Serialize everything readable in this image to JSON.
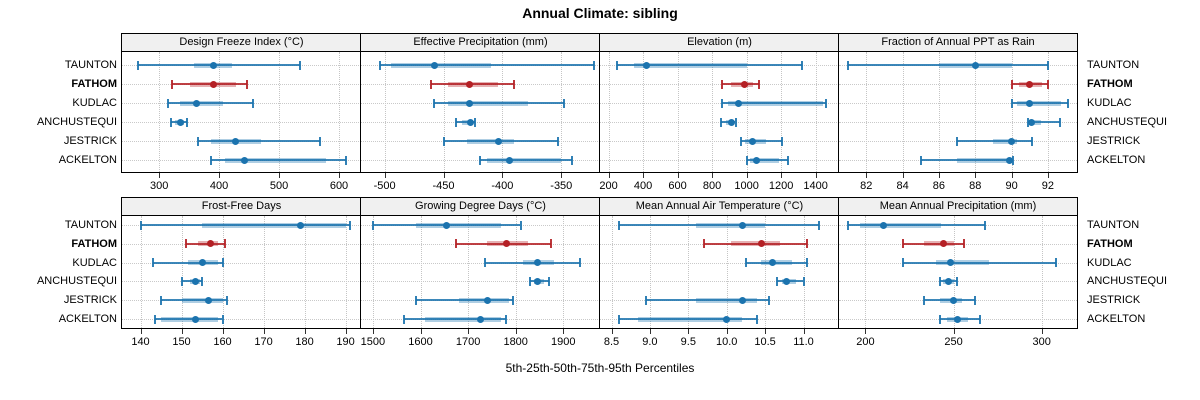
{
  "title": "Annual Climate: sibling",
  "caption": "5th-25th-50th-75th-95th Percentiles",
  "colors": {
    "series": "#1b73ae",
    "highlight": "#b42025",
    "grid": "#c5c5c5",
    "header_bg": "#f0f0f0",
    "border": "#000000"
  },
  "sites": [
    {
      "label": "TAUNTON",
      "bold": false
    },
    {
      "label": "FATHOM",
      "bold": true
    },
    {
      "label": "KUDLAC",
      "bold": false
    },
    {
      "label": "ANCHUSTEQUI",
      "bold": false
    },
    {
      "label": "JESTRICK",
      "bold": false
    },
    {
      "label": "ACKELTON",
      "bold": false
    }
  ],
  "highlight_site": "FATHOM",
  "chart_data": {
    "type": "interval-dotplot",
    "percentile_levels": [
      5,
      25,
      50,
      75,
      95
    ],
    "legend_position": "none",
    "grid": "dotted",
    "panels": [
      {
        "title": "Design Freeze Index (°C)",
        "range": [
          238,
          635
        ],
        "ticks": [
          300,
          400,
          500,
          600
        ],
        "tick_labels": [
          "300",
          "400",
          "500",
          "600"
        ],
        "series": [
          {
            "site": "TAUNTON",
            "values": [
              265,
              358,
              390,
              421,
              535
            ]
          },
          {
            "site": "FATHOM",
            "values": [
              321,
              351,
              390,
              428,
              446
            ]
          },
          {
            "site": "KUDLAC",
            "values": [
              315,
              335,
              362,
              406,
              456
            ]
          },
          {
            "site": "ANCHUSTEQUI",
            "values": [
              320,
              327,
              335,
              342,
              346
            ]
          },
          {
            "site": "JESTRICK",
            "values": [
              364,
              387,
              428,
              470,
              569
            ]
          },
          {
            "site": "ACKELTON",
            "values": [
              387,
              409,
              443,
              578,
              612
            ]
          }
        ]
      },
      {
        "title": "Effective Precipitation (mm)",
        "range": [
          -520,
          -318
        ],
        "ticks": [
          -500,
          -450,
          -400,
          -350
        ],
        "tick_labels": [
          "-500",
          "-450",
          "-400",
          "-350"
        ],
        "series": [
          {
            "site": "TAUNTON",
            "values": [
              -504,
              -495,
              -458,
              -410,
              -322
            ]
          },
          {
            "site": "FATHOM",
            "values": [
              -461,
              -446,
              -428,
              -404,
              -390
            ]
          },
          {
            "site": "KUDLAC",
            "values": [
              -458,
              -446,
              -428,
              -378,
              -348
            ]
          },
          {
            "site": "ANCHUSTEQUI",
            "values": [
              -439,
              -434,
              -427,
              -425,
              -423
            ]
          },
          {
            "site": "JESTRICK",
            "values": [
              -450,
              -430,
              -403,
              -390,
              -353
            ]
          },
          {
            "site": "ACKELTON",
            "values": [
              -419,
              -413,
              -394,
              -350,
              -341
            ]
          }
        ]
      },
      {
        "title": "Elevation (m)",
        "range": [
          150,
          1530
        ],
        "ticks": [
          200,
          400,
          600,
          800,
          1000,
          1200,
          1400
        ],
        "tick_labels": [
          "200",
          "400",
          "600",
          "800",
          "1000",
          "1200",
          "1400"
        ],
        "series": [
          {
            "site": "TAUNTON",
            "values": [
              250,
              345,
              420,
              1000,
              1320
            ]
          },
          {
            "site": "FATHOM",
            "values": [
              858,
              912,
              990,
              1037,
              1071
            ]
          },
          {
            "site": "KUDLAC",
            "values": [
              859,
              892,
              955,
              1440,
              1463
            ]
          },
          {
            "site": "ANCHUSTEQUI",
            "values": [
              850,
              880,
              912,
              928,
              936
            ]
          },
          {
            "site": "JESTRICK",
            "values": [
              965,
              990,
              1035,
              1115,
              1205
            ]
          },
          {
            "site": "ACKELTON",
            "values": [
              1000,
              1020,
              1060,
              1190,
              1240
            ]
          }
        ]
      },
      {
        "title": "Fraction of Annual PPT as Rain",
        "range": [
          80.5,
          93.6
        ],
        "ticks": [
          82,
          84,
          86,
          88,
          90,
          92
        ],
        "tick_labels": [
          "82",
          "84",
          "86",
          "88",
          "90",
          "92"
        ],
        "series": [
          {
            "site": "TAUNTON",
            "values": [
              81,
              86,
              88,
              90,
              92
            ]
          },
          {
            "site": "FATHOM",
            "values": [
              90,
              90.4,
              91,
              91.7,
              92
            ]
          },
          {
            "site": "KUDLAC",
            "values": [
              90,
              90.3,
              91,
              92.7,
              93.1
            ]
          },
          {
            "site": "ANCHUSTEQUI",
            "values": [
              90.9,
              91.0,
              91.1,
              91.6,
              92.65
            ]
          },
          {
            "site": "JESTRICK",
            "values": [
              87,
              89,
              90,
              90.3,
              91.1
            ]
          },
          {
            "site": "ACKELTON",
            "values": [
              85,
              87,
              89.9,
              90,
              90.05
            ]
          }
        ]
      },
      {
        "title": "Frost-Free Days",
        "range": [
          135.5,
          193.5
        ],
        "ticks": [
          140,
          150,
          160,
          170,
          180,
          190
        ],
        "tick_labels": [
          "140",
          "150",
          "160",
          "170",
          "180",
          "190"
        ],
        "series": [
          {
            "site": "TAUNTON",
            "values": [
              140,
              155,
              179,
              190,
              191
            ]
          },
          {
            "site": "FATHOM",
            "values": [
              151,
              154,
              157,
              159,
              160.5
            ]
          },
          {
            "site": "KUDLAC",
            "values": [
              143,
              151.5,
              155,
              159,
              160
            ]
          },
          {
            "site": "ANCHUSTEQUI",
            "values": [
              150,
              152,
              153.5,
              154.5,
              155
            ]
          },
          {
            "site": "JESTRICK",
            "values": [
              145,
              150,
              156.5,
              160,
              161
            ]
          },
          {
            "site": "ACKELTON",
            "values": [
              143.5,
              145,
              153.5,
              159,
              160
            ]
          }
        ]
      },
      {
        "title": "Growing Degree Days (°C)",
        "range": [
          1475,
          1975
        ],
        "ticks": [
          1500,
          1600,
          1700,
          1800,
          1900
        ],
        "tick_labels": [
          "1500",
          "1600",
          "1700",
          "1800",
          "1900"
        ],
        "series": [
          {
            "site": "TAUNTON",
            "values": [
              1500,
              1590,
              1655,
              1770,
              1810
            ]
          },
          {
            "site": "FATHOM",
            "values": [
              1675,
              1740,
              1780,
              1825,
              1875
            ]
          },
          {
            "site": "KUDLAC",
            "values": [
              1735,
              1815,
              1845,
              1880,
              1935
            ]
          },
          {
            "site": "ANCHUSTEQUI",
            "values": [
              1830,
              1838,
              1845,
              1860,
              1870
            ]
          },
          {
            "site": "JESTRICK",
            "values": [
              1590,
              1680,
              1740,
              1785,
              1795
            ]
          },
          {
            "site": "ACKELTON",
            "values": [
              1565,
              1610,
              1725,
              1770,
              1780
            ]
          }
        ]
      },
      {
        "title": "Mean Annual Air Temperature (°C)",
        "range": [
          8.35,
          11.45
        ],
        "ticks": [
          8.5,
          9.0,
          9.5,
          10.0,
          10.5,
          11.0
        ],
        "tick_labels": [
          "8.5",
          "9.0",
          "9.5",
          "10.0",
          "10.5",
          "11.0"
        ],
        "series": [
          {
            "site": "TAUNTON",
            "values": [
              8.6,
              9.6,
              10.2,
              10.5,
              11.2
            ]
          },
          {
            "site": "FATHOM",
            "values": [
              9.7,
              10.05,
              10.45,
              10.7,
              11.05
            ]
          },
          {
            "site": "KUDLAC",
            "values": [
              10.25,
              10.45,
              10.6,
              10.85,
              11.05
            ]
          },
          {
            "site": "ANCHUSTEQUI",
            "values": [
              10.65,
              10.72,
              10.78,
              10.9,
              11.0
            ]
          },
          {
            "site": "JESTRICK",
            "values": [
              8.95,
              9.6,
              10.2,
              10.4,
              10.55
            ]
          },
          {
            "site": "ACKELTON",
            "values": [
              8.6,
              8.85,
              10.0,
              10.2,
              10.4
            ]
          }
        ]
      },
      {
        "title": "Mean Annual Precipitation (mm)",
        "range": [
          185,
          320
        ],
        "ticks": [
          200,
          250,
          300
        ],
        "tick_labels": [
          "200",
          "250",
          "300"
        ],
        "series": [
          {
            "site": "TAUNTON",
            "values": [
              190,
              197,
              210,
              243,
              268
            ]
          },
          {
            "site": "FATHOM",
            "values": [
              221,
              233,
              244,
              250,
              256
            ]
          },
          {
            "site": "KUDLAC",
            "values": [
              221,
              240,
              248,
              270,
              308
            ]
          },
          {
            "site": "ANCHUSTEQUI",
            "values": [
              242,
              244,
              247,
              250,
              252
            ]
          },
          {
            "site": "JESTRICK",
            "values": [
              233,
              242,
              250,
              255,
              262
            ]
          },
          {
            "site": "ACKELTON",
            "values": [
              242,
              246,
              252,
              258,
              265
            ]
          }
        ]
      }
    ]
  }
}
